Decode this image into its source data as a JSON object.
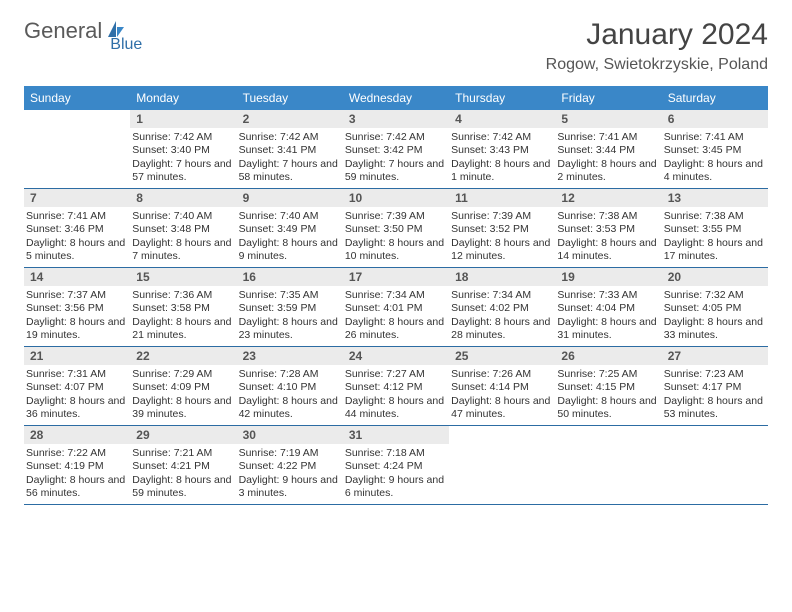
{
  "logo": {
    "text1": "General",
    "text2": "Blue"
  },
  "title": "January 2024",
  "location": "Rogow, Swietokrzyskie, Poland",
  "colors": {
    "header_bg": "#3a87c8",
    "header_text": "#ffffff",
    "week_border": "#2c6ca3",
    "daynum_bg": "#ebebeb",
    "logo_blue": "#2f6fa8",
    "logo_gray": "#5a5a5a"
  },
  "dayNames": [
    "Sunday",
    "Monday",
    "Tuesday",
    "Wednesday",
    "Thursday",
    "Friday",
    "Saturday"
  ],
  "weeks": [
    [
      {
        "day": "",
        "sunrise": "",
        "sunset": "",
        "daylight": ""
      },
      {
        "day": "1",
        "sunrise": "Sunrise: 7:42 AM",
        "sunset": "Sunset: 3:40 PM",
        "daylight": "Daylight: 7 hours and 57 minutes."
      },
      {
        "day": "2",
        "sunrise": "Sunrise: 7:42 AM",
        "sunset": "Sunset: 3:41 PM",
        "daylight": "Daylight: 7 hours and 58 minutes."
      },
      {
        "day": "3",
        "sunrise": "Sunrise: 7:42 AM",
        "sunset": "Sunset: 3:42 PM",
        "daylight": "Daylight: 7 hours and 59 minutes."
      },
      {
        "day": "4",
        "sunrise": "Sunrise: 7:42 AM",
        "sunset": "Sunset: 3:43 PM",
        "daylight": "Daylight: 8 hours and 1 minute."
      },
      {
        "day": "5",
        "sunrise": "Sunrise: 7:41 AM",
        "sunset": "Sunset: 3:44 PM",
        "daylight": "Daylight: 8 hours and 2 minutes."
      },
      {
        "day": "6",
        "sunrise": "Sunrise: 7:41 AM",
        "sunset": "Sunset: 3:45 PM",
        "daylight": "Daylight: 8 hours and 4 minutes."
      }
    ],
    [
      {
        "day": "7",
        "sunrise": "Sunrise: 7:41 AM",
        "sunset": "Sunset: 3:46 PM",
        "daylight": "Daylight: 8 hours and 5 minutes."
      },
      {
        "day": "8",
        "sunrise": "Sunrise: 7:40 AM",
        "sunset": "Sunset: 3:48 PM",
        "daylight": "Daylight: 8 hours and 7 minutes."
      },
      {
        "day": "9",
        "sunrise": "Sunrise: 7:40 AM",
        "sunset": "Sunset: 3:49 PM",
        "daylight": "Daylight: 8 hours and 9 minutes."
      },
      {
        "day": "10",
        "sunrise": "Sunrise: 7:39 AM",
        "sunset": "Sunset: 3:50 PM",
        "daylight": "Daylight: 8 hours and 10 minutes."
      },
      {
        "day": "11",
        "sunrise": "Sunrise: 7:39 AM",
        "sunset": "Sunset: 3:52 PM",
        "daylight": "Daylight: 8 hours and 12 minutes."
      },
      {
        "day": "12",
        "sunrise": "Sunrise: 7:38 AM",
        "sunset": "Sunset: 3:53 PM",
        "daylight": "Daylight: 8 hours and 14 minutes."
      },
      {
        "day": "13",
        "sunrise": "Sunrise: 7:38 AM",
        "sunset": "Sunset: 3:55 PM",
        "daylight": "Daylight: 8 hours and 17 minutes."
      }
    ],
    [
      {
        "day": "14",
        "sunrise": "Sunrise: 7:37 AM",
        "sunset": "Sunset: 3:56 PM",
        "daylight": "Daylight: 8 hours and 19 minutes."
      },
      {
        "day": "15",
        "sunrise": "Sunrise: 7:36 AM",
        "sunset": "Sunset: 3:58 PM",
        "daylight": "Daylight: 8 hours and 21 minutes."
      },
      {
        "day": "16",
        "sunrise": "Sunrise: 7:35 AM",
        "sunset": "Sunset: 3:59 PM",
        "daylight": "Daylight: 8 hours and 23 minutes."
      },
      {
        "day": "17",
        "sunrise": "Sunrise: 7:34 AM",
        "sunset": "Sunset: 4:01 PM",
        "daylight": "Daylight: 8 hours and 26 minutes."
      },
      {
        "day": "18",
        "sunrise": "Sunrise: 7:34 AM",
        "sunset": "Sunset: 4:02 PM",
        "daylight": "Daylight: 8 hours and 28 minutes."
      },
      {
        "day": "19",
        "sunrise": "Sunrise: 7:33 AM",
        "sunset": "Sunset: 4:04 PM",
        "daylight": "Daylight: 8 hours and 31 minutes."
      },
      {
        "day": "20",
        "sunrise": "Sunrise: 7:32 AM",
        "sunset": "Sunset: 4:05 PM",
        "daylight": "Daylight: 8 hours and 33 minutes."
      }
    ],
    [
      {
        "day": "21",
        "sunrise": "Sunrise: 7:31 AM",
        "sunset": "Sunset: 4:07 PM",
        "daylight": "Daylight: 8 hours and 36 minutes."
      },
      {
        "day": "22",
        "sunrise": "Sunrise: 7:29 AM",
        "sunset": "Sunset: 4:09 PM",
        "daylight": "Daylight: 8 hours and 39 minutes."
      },
      {
        "day": "23",
        "sunrise": "Sunrise: 7:28 AM",
        "sunset": "Sunset: 4:10 PM",
        "daylight": "Daylight: 8 hours and 42 minutes."
      },
      {
        "day": "24",
        "sunrise": "Sunrise: 7:27 AM",
        "sunset": "Sunset: 4:12 PM",
        "daylight": "Daylight: 8 hours and 44 minutes."
      },
      {
        "day": "25",
        "sunrise": "Sunrise: 7:26 AM",
        "sunset": "Sunset: 4:14 PM",
        "daylight": "Daylight: 8 hours and 47 minutes."
      },
      {
        "day": "26",
        "sunrise": "Sunrise: 7:25 AM",
        "sunset": "Sunset: 4:15 PM",
        "daylight": "Daylight: 8 hours and 50 minutes."
      },
      {
        "day": "27",
        "sunrise": "Sunrise: 7:23 AM",
        "sunset": "Sunset: 4:17 PM",
        "daylight": "Daylight: 8 hours and 53 minutes."
      }
    ],
    [
      {
        "day": "28",
        "sunrise": "Sunrise: 7:22 AM",
        "sunset": "Sunset: 4:19 PM",
        "daylight": "Daylight: 8 hours and 56 minutes."
      },
      {
        "day": "29",
        "sunrise": "Sunrise: 7:21 AM",
        "sunset": "Sunset: 4:21 PM",
        "daylight": "Daylight: 8 hours and 59 minutes."
      },
      {
        "day": "30",
        "sunrise": "Sunrise: 7:19 AM",
        "sunset": "Sunset: 4:22 PM",
        "daylight": "Daylight: 9 hours and 3 minutes."
      },
      {
        "day": "31",
        "sunrise": "Sunrise: 7:18 AM",
        "sunset": "Sunset: 4:24 PM",
        "daylight": "Daylight: 9 hours and 6 minutes."
      },
      {
        "day": "",
        "sunrise": "",
        "sunset": "",
        "daylight": ""
      },
      {
        "day": "",
        "sunrise": "",
        "sunset": "",
        "daylight": ""
      },
      {
        "day": "",
        "sunrise": "",
        "sunset": "",
        "daylight": ""
      }
    ]
  ]
}
